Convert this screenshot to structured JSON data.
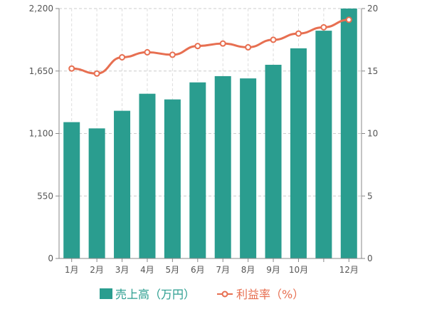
{
  "chart_data": {
    "type": "bar",
    "categories": [
      "1月",
      "2月",
      "3月",
      "4月",
      "5月",
      "6月",
      "7月",
      "8月",
      "9月",
      "10月",
      "",
      "12月"
    ],
    "series": [
      {
        "name": "売上高（万円）",
        "type": "bar",
        "axis": "left",
        "color": "#2a9d8f",
        "values": [
          1200,
          1145,
          1300,
          1450,
          1400,
          1550,
          1605,
          1585,
          1705,
          1850,
          2005,
          2200
        ]
      },
      {
        "name": "利益率（%）",
        "type": "line",
        "axis": "right",
        "color": "#e76f51",
        "values": [
          15.2,
          14.8,
          16.1,
          16.5,
          16.3,
          17.0,
          17.2,
          16.9,
          17.5,
          18.0,
          18.5,
          19.1
        ]
      }
    ],
    "y_left": {
      "ticks": [
        "0",
        "550",
        "1,100",
        "1,650",
        "2,200"
      ],
      "range": [
        0,
        2200
      ]
    },
    "y_right": {
      "ticks": [
        "0",
        "5",
        "10",
        "15",
        "20"
      ],
      "range": [
        0,
        20
      ]
    },
    "grid": true,
    "legend": "bottom"
  }
}
